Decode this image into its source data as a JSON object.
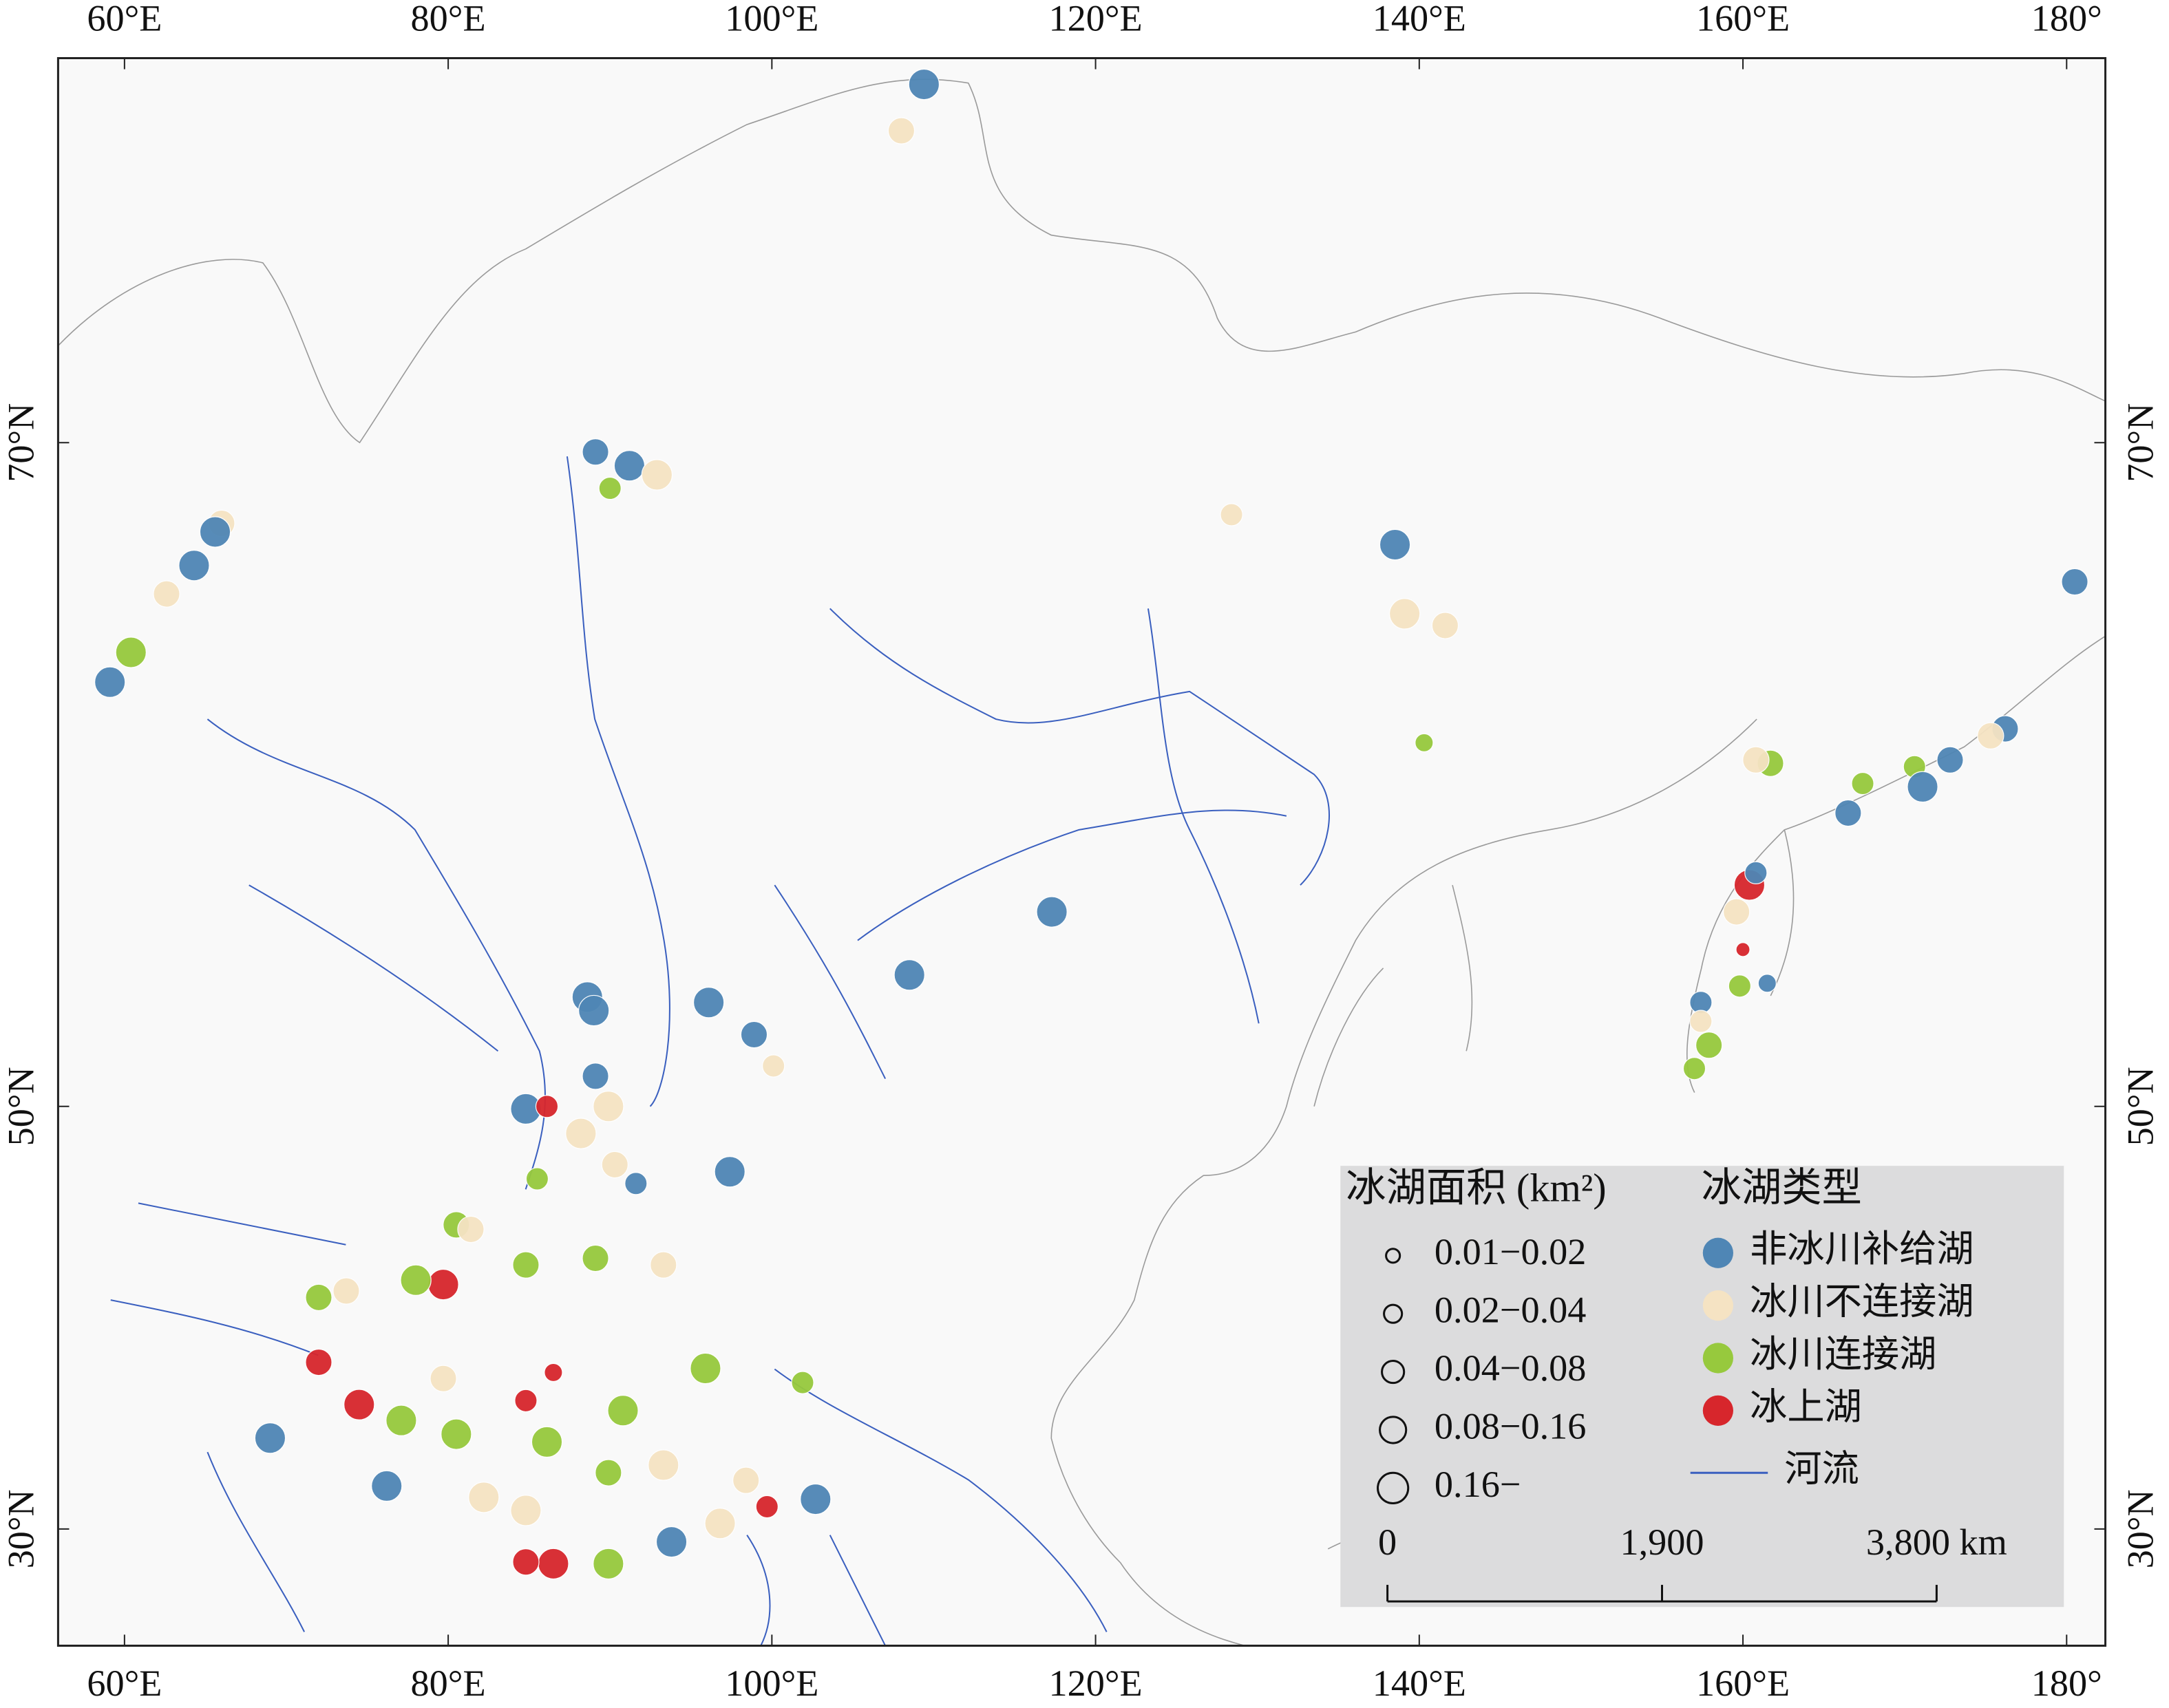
{
  "map": {
    "lon_ticks": [
      {
        "value": 60,
        "label": "60°E"
      },
      {
        "value": 80,
        "label": "80°E"
      },
      {
        "value": 100,
        "label": "100°E"
      },
      {
        "value": 120,
        "label": "120°E"
      },
      {
        "value": 140,
        "label": "140°E"
      },
      {
        "value": 160,
        "label": "160°E"
      },
      {
        "value": 180,
        "label": "180°"
      }
    ],
    "lat_ticks": [
      {
        "value": 70,
        "label": "70°N"
      },
      {
        "value": 50,
        "label": "50°N"
      },
      {
        "value": 30,
        "label": "30°N"
      }
    ],
    "size_legend": {
      "title": "冰湖面积 (km²)",
      "entries": [
        "0.01−0.02",
        "0.02−0.04",
        "0.04−0.08",
        "0.08−0.16",
        "0.16−"
      ]
    },
    "type_legend": {
      "title": "冰湖类型",
      "entries": [
        {
          "name": "非冰川补给湖",
          "color": "#4f86b5"
        },
        {
          "name": "冰川不连接湖",
          "color": "#f5e3c3"
        },
        {
          "name": "冰川连接湖",
          "color": "#97c93d"
        },
        {
          "name": "冰上湖",
          "color": "#d7262c"
        }
      ],
      "river": {
        "name": "河流",
        "color": "#3a5fbf"
      }
    },
    "scale_bar": {
      "ticks": [
        0,
        {
          "value": 1900,
          "label": "1,900"
        },
        {
          "value": 3800,
          "label": "3,800 km"
        }
      ]
    },
    "lakes": [
      {
        "lon": 109.4,
        "lat": 76.4,
        "type": 0,
        "size": 4
      },
      {
        "lon": 108.0,
        "lat": 75.7,
        "type": 1,
        "size": 3
      },
      {
        "lon": 89.1,
        "lat": 69.8,
        "type": 0,
        "size": 3
      },
      {
        "lon": 91.2,
        "lat": 69.5,
        "type": 0,
        "size": 4
      },
      {
        "lon": 92.9,
        "lat": 69.3,
        "type": 1,
        "size": 4
      },
      {
        "lon": 90.0,
        "lat": 69.0,
        "type": 2,
        "size": 2
      },
      {
        "lon": 66.0,
        "lat": 68.2,
        "type": 1,
        "size": 3
      },
      {
        "lon": 65.6,
        "lat": 68.0,
        "type": 0,
        "size": 4
      },
      {
        "lon": 64.3,
        "lat": 67.2,
        "type": 0,
        "size": 4
      },
      {
        "lon": 62.6,
        "lat": 66.5,
        "type": 1,
        "size": 3
      },
      {
        "lon": 60.4,
        "lat": 65.0,
        "type": 2,
        "size": 4
      },
      {
        "lon": 59.1,
        "lat": 64.2,
        "type": 0,
        "size": 4
      },
      {
        "lon": 138.5,
        "lat": 67.7,
        "type": 0,
        "size": 4
      },
      {
        "lon": 139.1,
        "lat": 66.0,
        "type": 1,
        "size": 4
      },
      {
        "lon": 141.6,
        "lat": 65.7,
        "type": 1,
        "size": 3
      },
      {
        "lon": 128.4,
        "lat": 68.4,
        "type": 1,
        "size": 2
      },
      {
        "lon": 180.5,
        "lat": 66.8,
        "type": 0,
        "size": 3
      },
      {
        "lon": 140.3,
        "lat": 62.5,
        "type": 2,
        "size": 1
      },
      {
        "lon": 176.2,
        "lat": 62.9,
        "type": 0,
        "size": 3
      },
      {
        "lon": 175.3,
        "lat": 62.7,
        "type": 1,
        "size": 3
      },
      {
        "lon": 172.8,
        "lat": 62.0,
        "type": 0,
        "size": 3
      },
      {
        "lon": 170.6,
        "lat": 61.8,
        "type": 2,
        "size": 2
      },
      {
        "lon": 171.1,
        "lat": 61.2,
        "type": 0,
        "size": 4
      },
      {
        "lon": 166.5,
        "lat": 60.4,
        "type": 0,
        "size": 3
      },
      {
        "lon": 167.4,
        "lat": 61.3,
        "type": 2,
        "size": 2
      },
      {
        "lon": 161.7,
        "lat": 61.9,
        "type": 2,
        "size": 3
      },
      {
        "lon": 160.8,
        "lat": 62.0,
        "type": 1,
        "size": 3
      },
      {
        "lon": 160.4,
        "lat": 58.1,
        "type": 3,
        "size": 4
      },
      {
        "lon": 160.8,
        "lat": 58.5,
        "type": 0,
        "size": 2
      },
      {
        "lon": 159.6,
        "lat": 57.2,
        "type": 1,
        "size": 3
      },
      {
        "lon": 160.0,
        "lat": 55.9,
        "type": 3,
        "size": 0
      },
      {
        "lon": 157.4,
        "lat": 54.0,
        "type": 0,
        "size": 2
      },
      {
        "lon": 157.4,
        "lat": 53.3,
        "type": 1,
        "size": 2
      },
      {
        "lon": 157.9,
        "lat": 52.4,
        "type": 2,
        "size": 3
      },
      {
        "lon": 157.0,
        "lat": 51.5,
        "type": 2,
        "size": 2
      },
      {
        "lon": 159.8,
        "lat": 54.6,
        "type": 2,
        "size": 2
      },
      {
        "lon": 161.5,
        "lat": 54.7,
        "type": 0,
        "size": 1
      },
      {
        "lon": 117.3,
        "lat": 57.2,
        "type": 0,
        "size": 4
      },
      {
        "lon": 108.5,
        "lat": 55.0,
        "type": 0,
        "size": 4
      },
      {
        "lon": 88.6,
        "lat": 54.2,
        "type": 0,
        "size": 4
      },
      {
        "lon": 89.0,
        "lat": 53.7,
        "type": 0,
        "size": 4
      },
      {
        "lon": 96.1,
        "lat": 54.0,
        "type": 0,
        "size": 4
      },
      {
        "lon": 98.9,
        "lat": 52.8,
        "type": 0,
        "size": 3
      },
      {
        "lon": 100.1,
        "lat": 51.6,
        "type": 1,
        "size": 2
      },
      {
        "lon": 84.8,
        "lat": 49.9,
        "type": 0,
        "size": 4
      },
      {
        "lon": 86.1,
        "lat": 50.0,
        "type": 3,
        "size": 2
      },
      {
        "lon": 89.1,
        "lat": 51.2,
        "type": 0,
        "size": 3
      },
      {
        "lon": 88.2,
        "lat": 48.9,
        "type": 1,
        "size": 4
      },
      {
        "lon": 89.9,
        "lat": 50.0,
        "type": 1,
        "size": 4
      },
      {
        "lon": 90.3,
        "lat": 47.6,
        "type": 1,
        "size": 3
      },
      {
        "lon": 91.6,
        "lat": 46.8,
        "type": 0,
        "size": 2
      },
      {
        "lon": 97.4,
        "lat": 47.3,
        "type": 0,
        "size": 4
      },
      {
        "lon": 85.5,
        "lat": 47.0,
        "type": 2,
        "size": 2
      },
      {
        "lon": 79.7,
        "lat": 42.3,
        "type": 3,
        "size": 4
      },
      {
        "lon": 80.5,
        "lat": 45.0,
        "type": 2,
        "size": 3
      },
      {
        "lon": 81.4,
        "lat": 44.8,
        "type": 1,
        "size": 3
      },
      {
        "lon": 78.0,
        "lat": 42.5,
        "type": 2,
        "size": 4
      },
      {
        "lon": 73.7,
        "lat": 42.0,
        "type": 1,
        "size": 3
      },
      {
        "lon": 72.0,
        "lat": 41.7,
        "type": 2,
        "size": 3
      },
      {
        "lon": 84.8,
        "lat": 43.2,
        "type": 2,
        "size": 3
      },
      {
        "lon": 89.1,
        "lat": 43.5,
        "type": 2,
        "size": 3
      },
      {
        "lon": 93.3,
        "lat": 43.2,
        "type": 1,
        "size": 3
      },
      {
        "lon": 69.0,
        "lat": 34.8,
        "type": 0,
        "size": 4
      },
      {
        "lon": 72.0,
        "lat": 38.6,
        "type": 3,
        "size": 3
      },
      {
        "lon": 74.5,
        "lat": 36.5,
        "type": 3,
        "size": 4
      },
      {
        "lon": 76.2,
        "lat": 32.3,
        "type": 0,
        "size": 4
      },
      {
        "lon": 77.1,
        "lat": 35.7,
        "type": 2,
        "size": 4
      },
      {
        "lon": 80.5,
        "lat": 35.0,
        "type": 2,
        "size": 4
      },
      {
        "lon": 82.2,
        "lat": 31.7,
        "type": 1,
        "size": 4
      },
      {
        "lon": 84.8,
        "lat": 31.0,
        "type": 1,
        "size": 4
      },
      {
        "lon": 86.5,
        "lat": 28.1,
        "type": 3,
        "size": 4
      },
      {
        "lon": 84.8,
        "lat": 28.2,
        "type": 3,
        "size": 3
      },
      {
        "lon": 89.9,
        "lat": 28.1,
        "type": 2,
        "size": 4
      },
      {
        "lon": 93.8,
        "lat": 29.3,
        "type": 0,
        "size": 4
      },
      {
        "lon": 96.8,
        "lat": 30.3,
        "type": 1,
        "size": 4
      },
      {
        "lon": 102.7,
        "lat": 31.6,
        "type": 0,
        "size": 4
      },
      {
        "lon": 99.7,
        "lat": 31.2,
        "type": 3,
        "size": 2
      },
      {
        "lon": 86.1,
        "lat": 34.6,
        "type": 2,
        "size": 4
      },
      {
        "lon": 90.8,
        "lat": 36.2,
        "type": 2,
        "size": 4
      },
      {
        "lon": 95.9,
        "lat": 38.3,
        "type": 2,
        "size": 4
      },
      {
        "lon": 89.9,
        "lat": 33.0,
        "type": 2,
        "size": 3
      },
      {
        "lon": 84.8,
        "lat": 36.7,
        "type": 3,
        "size": 2
      },
      {
        "lon": 101.9,
        "lat": 37.6,
        "type": 2,
        "size": 2
      },
      {
        "lon": 86.5,
        "lat": 38.1,
        "type": 3,
        "size": 1
      },
      {
        "lon": 79.7,
        "lat": 37.8,
        "type": 1,
        "size": 3
      },
      {
        "lon": 93.3,
        "lat": 33.4,
        "type": 1,
        "size": 4
      },
      {
        "lon": 98.4,
        "lat": 32.6,
        "type": 1,
        "size": 3
      }
    ]
  }
}
